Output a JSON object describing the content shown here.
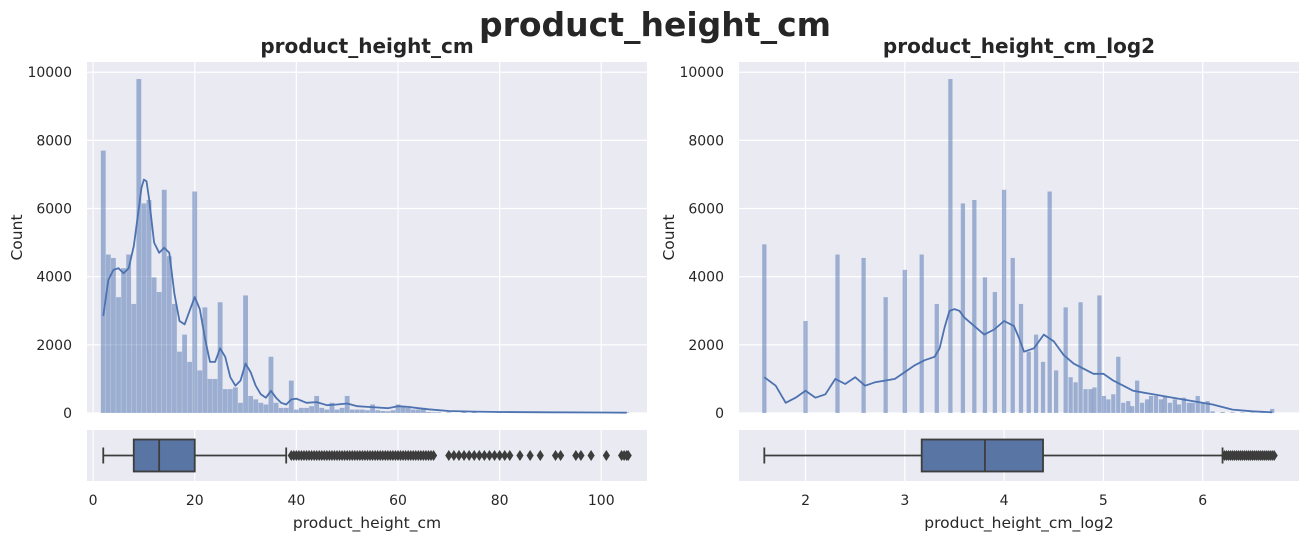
{
  "figure": {
    "title": "product_height_cm"
  },
  "colors": {
    "axes_bg": "#EAEAF2",
    "grid": "#FFFFFF",
    "bar_fill": "#4C72B0",
    "kde_line": "#4C72B0",
    "box_fill": "#5975A4",
    "box_edge": "#3D3D3D",
    "text": "#262626"
  },
  "chart_data": [
    {
      "type": "histogram",
      "title": "product_height_cm",
      "xlabel": "",
      "ylabel": "Count",
      "ylim": [
        0,
        10300
      ],
      "yticks": [
        0,
        2000,
        4000,
        6000,
        8000,
        10000
      ],
      "xlim": [
        -1.2,
        109
      ],
      "xticks": [
        0,
        20,
        40,
        60,
        80,
        100
      ],
      "grid": true,
      "bin_width": 1.03,
      "bins": [
        {
          "x": 2,
          "count": 7700
        },
        {
          "x": 3,
          "count": 4650
        },
        {
          "x": 4,
          "count": 4550
        },
        {
          "x": 5,
          "count": 3400
        },
        {
          "x": 6,
          "count": 4250
        },
        {
          "x": 7,
          "count": 4650
        },
        {
          "x": 8,
          "count": 3200
        },
        {
          "x": 9,
          "count": 9800
        },
        {
          "x": 10,
          "count": 6150
        },
        {
          "x": 11,
          "count": 6250
        },
        {
          "x": 12,
          "count": 3980
        },
        {
          "x": 13,
          "count": 3550
        },
        {
          "x": 14,
          "count": 6550
        },
        {
          "x": 15,
          "count": 4600
        },
        {
          "x": 16,
          "count": 3200
        },
        {
          "x": 17,
          "count": 1800
        },
        {
          "x": 18,
          "count": 2300
        },
        {
          "x": 19,
          "count": 1500
        },
        {
          "x": 20,
          "count": 6500
        },
        {
          "x": 21,
          "count": 1250
        },
        {
          "x": 22,
          "count": 3100
        },
        {
          "x": 23,
          "count": 1000
        },
        {
          "x": 24,
          "count": 1000
        },
        {
          "x": 25,
          "count": 3250
        },
        {
          "x": 26,
          "count": 700
        },
        {
          "x": 27,
          "count": 700
        },
        {
          "x": 28,
          "count": 750
        },
        {
          "x": 29,
          "count": 300
        },
        {
          "x": 30,
          "count": 3450
        },
        {
          "x": 31,
          "count": 500
        },
        {
          "x": 32,
          "count": 400
        },
        {
          "x": 33,
          "count": 300
        },
        {
          "x": 34,
          "count": 250
        },
        {
          "x": 35,
          "count": 1650
        },
        {
          "x": 36,
          "count": 300
        },
        {
          "x": 37,
          "count": 150
        },
        {
          "x": 38,
          "count": 150
        },
        {
          "x": 39,
          "count": 950
        },
        {
          "x": 40,
          "count": 100
        },
        {
          "x": 41,
          "count": 150
        },
        {
          "x": 42,
          "count": 150
        },
        {
          "x": 43,
          "count": 200
        },
        {
          "x": 44,
          "count": 500
        },
        {
          "x": 45,
          "count": 150
        },
        {
          "x": 46,
          "count": 100
        },
        {
          "x": 47,
          "count": 300
        },
        {
          "x": 48,
          "count": 100
        },
        {
          "x": 49,
          "count": 150
        },
        {
          "x": 50,
          "count": 500
        },
        {
          "x": 51,
          "count": 100
        },
        {
          "x": 52,
          "count": 100
        },
        {
          "x": 53,
          "count": 100
        },
        {
          "x": 54,
          "count": 80
        },
        {
          "x": 55,
          "count": 250
        },
        {
          "x": 56,
          "count": 80
        },
        {
          "x": 57,
          "count": 60
        },
        {
          "x": 58,
          "count": 50
        },
        {
          "x": 59,
          "count": 80
        },
        {
          "x": 60,
          "count": 250
        },
        {
          "x": 61,
          "count": 200
        },
        {
          "x": 62,
          "count": 150
        },
        {
          "x": 63,
          "count": 100
        },
        {
          "x": 64,
          "count": 100
        },
        {
          "x": 65,
          "count": 150
        },
        {
          "x": 66,
          "count": 30
        },
        {
          "x": 67,
          "count": 20
        },
        {
          "x": 68,
          "count": 20
        },
        {
          "x": 70,
          "count": 20
        },
        {
          "x": 73,
          "count": 30
        },
        {
          "x": 75,
          "count": 15
        },
        {
          "x": 80,
          "count": 15
        },
        {
          "x": 85,
          "count": 10
        },
        {
          "x": 90,
          "count": 10
        },
        {
          "x": 100,
          "count": 15
        },
        {
          "x": 105,
          "count": 20
        }
      ],
      "kde": {
        "x": [
          2,
          3,
          4,
          5,
          6,
          7,
          8,
          9,
          9.5,
          10,
          10.5,
          11,
          12,
          13,
          14,
          15,
          16,
          17,
          18,
          19,
          20,
          21,
          22,
          23,
          24,
          25,
          26,
          27,
          28,
          29,
          30,
          31,
          32,
          33,
          34,
          35,
          36,
          37,
          38,
          39,
          40,
          42,
          44,
          46,
          48,
          50,
          52,
          54,
          56,
          58,
          60,
          62,
          64,
          66,
          70,
          75,
          80,
          90,
          100,
          105
        ],
        "y": [
          2850,
          3900,
          4200,
          4250,
          4100,
          4250,
          4900,
          6000,
          6600,
          6850,
          6800,
          6300,
          5000,
          4700,
          4850,
          4700,
          3500,
          2700,
          2600,
          3000,
          3400,
          3050,
          2200,
          1500,
          1500,
          1900,
          1650,
          1050,
          800,
          950,
          1450,
          1200,
          800,
          550,
          450,
          650,
          450,
          300,
          250,
          400,
          420,
          300,
          320,
          230,
          250,
          280,
          200,
          180,
          160,
          140,
          200,
          180,
          140,
          110,
          60,
          40,
          30,
          20,
          15,
          10
        ]
      },
      "box": {
        "xlabel": "product_height_cm",
        "whisker_low": 2,
        "q1": 8,
        "median": 13,
        "q3": 20,
        "whisker_high": 38,
        "outliers": [
          39,
          39.5,
          40,
          40.5,
          41,
          41.5,
          42,
          42.5,
          43,
          43.5,
          44,
          44.5,
          45,
          45.5,
          46,
          46.5,
          47,
          47.5,
          48,
          48.5,
          49,
          49.5,
          50,
          50.5,
          51,
          51.5,
          52,
          52.5,
          53,
          53.5,
          54,
          54.5,
          55,
          55.5,
          56,
          56.5,
          57,
          57.5,
          58,
          58.5,
          59,
          59.5,
          60,
          60.5,
          61,
          61.5,
          62,
          62.5,
          63,
          63.5,
          64,
          64.5,
          65,
          65.5,
          66,
          66.5,
          67,
          70,
          71,
          72,
          73,
          74,
          75,
          76,
          77,
          78,
          79,
          80,
          81,
          82,
          84,
          86,
          88,
          91,
          92,
          95,
          96,
          98,
          101,
          104,
          104.5,
          105,
          105.3
        ]
      }
    },
    {
      "type": "histogram",
      "title": "product_height_cm_log2",
      "xlabel": "",
      "ylabel": "Count",
      "ylim": [
        0,
        10300
      ],
      "yticks": [
        0,
        2000,
        4000,
        6000,
        8000,
        10000
      ],
      "xlim": [
        1.33,
        6.97
      ],
      "xticks": [
        2,
        3,
        4,
        5,
        6
      ],
      "grid": true,
      "bin_width": 0.0466,
      "bins": [
        {
          "x": 1.585,
          "count": 4950
        },
        {
          "x": 2.0,
          "count": 2700
        },
        {
          "x": 2.322,
          "count": 4650
        },
        {
          "x": 2.585,
          "count": 4550
        },
        {
          "x": 2.807,
          "count": 3400
        },
        {
          "x": 3.0,
          "count": 4200
        },
        {
          "x": 3.17,
          "count": 4650
        },
        {
          "x": 3.322,
          "count": 3200
        },
        {
          "x": 3.459,
          "count": 9800
        },
        {
          "x": 3.585,
          "count": 6150
        },
        {
          "x": 3.7,
          "count": 6250
        },
        {
          "x": 3.807,
          "count": 3980
        },
        {
          "x": 3.907,
          "count": 3550
        },
        {
          "x": 4.0,
          "count": 6550
        },
        {
          "x": 4.087,
          "count": 4550
        },
        {
          "x": 4.17,
          "count": 3200
        },
        {
          "x": 4.248,
          "count": 1800
        },
        {
          "x": 4.322,
          "count": 2300
        },
        {
          "x": 4.392,
          "count": 1500
        },
        {
          "x": 4.459,
          "count": 6500
        },
        {
          "x": 4.524,
          "count": 1250
        },
        {
          "x": 4.62,
          "count": 3100
        },
        {
          "x": 4.67,
          "count": 1050
        },
        {
          "x": 4.72,
          "count": 900
        },
        {
          "x": 4.77,
          "count": 3250
        },
        {
          "x": 4.82,
          "count": 700
        },
        {
          "x": 4.87,
          "count": 700
        },
        {
          "x": 4.91,
          "count": 750
        },
        {
          "x": 4.96,
          "count": 3450
        },
        {
          "x": 5.005,
          "count": 500
        },
        {
          "x": 5.05,
          "count": 400
        },
        {
          "x": 5.1,
          "count": 550
        },
        {
          "x": 5.15,
          "count": 1650
        },
        {
          "x": 5.2,
          "count": 300
        },
        {
          "x": 5.25,
          "count": 350
        },
        {
          "x": 5.29,
          "count": 200
        },
        {
          "x": 5.34,
          "count": 950
        },
        {
          "x": 5.39,
          "count": 300
        },
        {
          "x": 5.44,
          "count": 400
        },
        {
          "x": 5.48,
          "count": 500
        },
        {
          "x": 5.53,
          "count": 500
        },
        {
          "x": 5.58,
          "count": 400
        },
        {
          "x": 5.62,
          "count": 500
        },
        {
          "x": 5.67,
          "count": 300
        },
        {
          "x": 5.72,
          "count": 400
        },
        {
          "x": 5.76,
          "count": 250
        },
        {
          "x": 5.81,
          "count": 450
        },
        {
          "x": 5.86,
          "count": 300
        },
        {
          "x": 5.9,
          "count": 300
        },
        {
          "x": 5.95,
          "count": 500
        },
        {
          "x": 6.0,
          "count": 300
        },
        {
          "x": 6.05,
          "count": 350
        },
        {
          "x": 6.1,
          "count": 50
        },
        {
          "x": 6.2,
          "count": 30
        },
        {
          "x": 6.3,
          "count": 20
        },
        {
          "x": 6.4,
          "count": 15
        },
        {
          "x": 6.5,
          "count": 10
        },
        {
          "x": 6.6,
          "count": 10
        },
        {
          "x": 6.7,
          "count": 120
        }
      ],
      "kde": {
        "x": [
          1.585,
          1.7,
          1.8,
          1.9,
          2.0,
          2.1,
          2.2,
          2.3,
          2.4,
          2.5,
          2.6,
          2.7,
          2.8,
          2.9,
          3.0,
          3.1,
          3.2,
          3.3,
          3.35,
          3.4,
          3.45,
          3.5,
          3.55,
          3.6,
          3.7,
          3.8,
          3.9,
          4.0,
          4.1,
          4.15,
          4.2,
          4.3,
          4.4,
          4.5,
          4.6,
          4.7,
          4.8,
          4.9,
          5.0,
          5.1,
          5.2,
          5.3,
          5.5,
          5.7,
          5.9,
          6.1,
          6.3,
          6.5,
          6.7
        ],
        "y": [
          1050,
          800,
          300,
          450,
          650,
          450,
          550,
          1000,
          850,
          1050,
          800,
          900,
          950,
          1000,
          1200,
          1400,
          1550,
          1650,
          1900,
          2500,
          3000,
          3050,
          3000,
          2800,
          2550,
          2300,
          2450,
          2700,
          2550,
          2200,
          1800,
          1900,
          2300,
          2100,
          1700,
          1450,
          1300,
          1150,
          1150,
          950,
          800,
          650,
          550,
          450,
          350,
          250,
          100,
          50,
          20
        ]
      },
      "box": {
        "xlabel": "product_height_cm_log2",
        "whisker_low": 1.585,
        "q1": 3.17,
        "median": 3.807,
        "q3": 4.392,
        "whisker_high": 6.2,
        "outliers": [
          6.22,
          6.24,
          6.26,
          6.28,
          6.3,
          6.32,
          6.34,
          6.36,
          6.38,
          6.4,
          6.42,
          6.44,
          6.46,
          6.48,
          6.5,
          6.52,
          6.54,
          6.56,
          6.58,
          6.6,
          6.62,
          6.64,
          6.66,
          6.68,
          6.7,
          6.72
        ]
      }
    }
  ]
}
